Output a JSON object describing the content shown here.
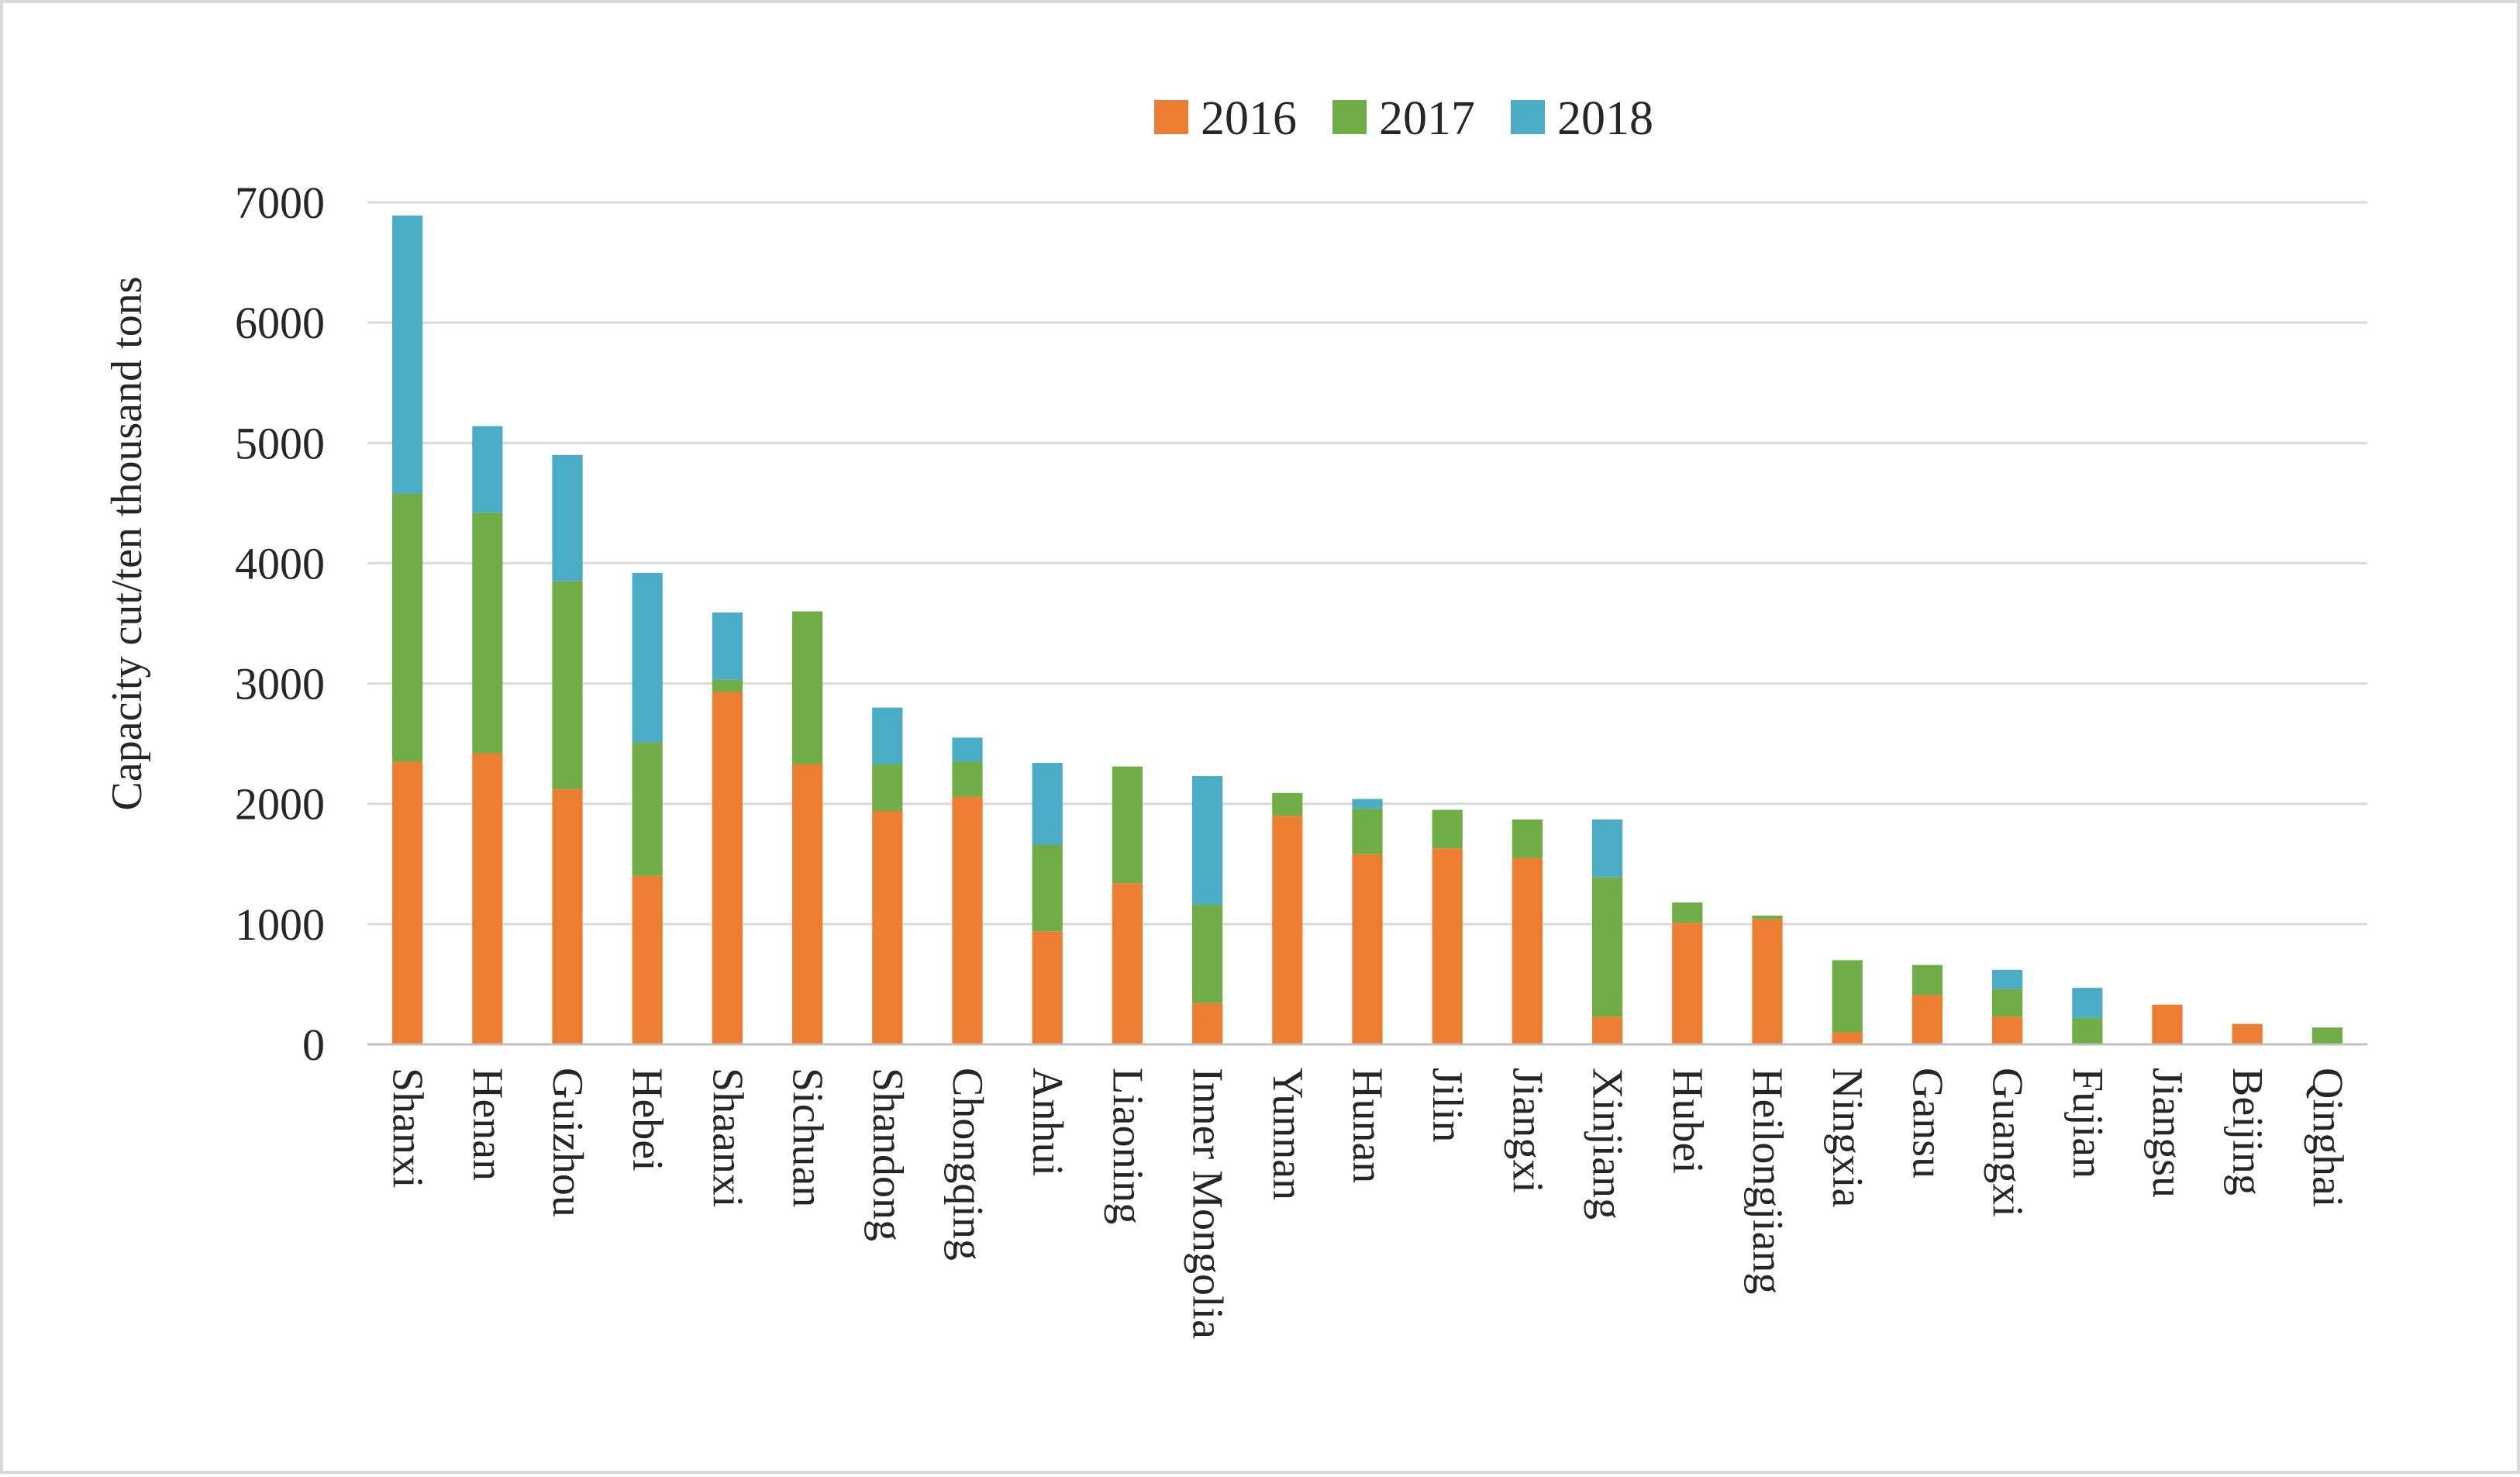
{
  "chart_data": {
    "type": "bar",
    "stacked": true,
    "title": "",
    "xlabel": "",
    "ylabel": "Capacity cut/ten thousand tons",
    "ylim": [
      0,
      7000
    ],
    "yticks": [
      0,
      1000,
      2000,
      3000,
      4000,
      5000,
      6000,
      7000
    ],
    "grid": true,
    "legend_position": "top-center",
    "categories": [
      "Shanxi",
      "Henan",
      "Guizhou",
      "Hebei",
      "Shaanxi",
      "Sichuan",
      "Shandong",
      "Chongqing",
      "Anhui",
      "Liaoning",
      "Inner Mongolia",
      "Yunnan",
      "Hunan",
      "Jilin",
      "Jiangxi",
      "Xinjiang",
      "Hubei",
      "Heilongjiang",
      "Ningxia",
      "Gansu",
      "Guangxi",
      "Fujian",
      "Jiangsu",
      "Beijing",
      "Qinghai"
    ],
    "series": [
      {
        "name": "2016",
        "color": "#ed7d31",
        "values": [
          2350,
          2420,
          2120,
          1400,
          2930,
          2330,
          1940,
          2060,
          940,
          1340,
          340,
          1900,
          1580,
          1630,
          1550,
          230,
          1010,
          1040,
          100,
          410,
          230,
          0,
          330,
          170,
          0
        ]
      },
      {
        "name": "2017",
        "color": "#70ad47",
        "values": [
          2230,
          2000,
          1730,
          1110,
          100,
          1270,
          390,
          290,
          720,
          970,
          820,
          190,
          380,
          320,
          320,
          1160,
          170,
          30,
          600,
          250,
          230,
          220,
          0,
          0,
          140
        ]
      },
      {
        "name": "2018",
        "color": "#4bacc6",
        "values": [
          2310,
          720,
          1050,
          1410,
          560,
          0,
          470,
          200,
          680,
          0,
          1070,
          0,
          80,
          0,
          0,
          480,
          0,
          0,
          0,
          0,
          160,
          250,
          0,
          0,
          0
        ]
      }
    ]
  }
}
